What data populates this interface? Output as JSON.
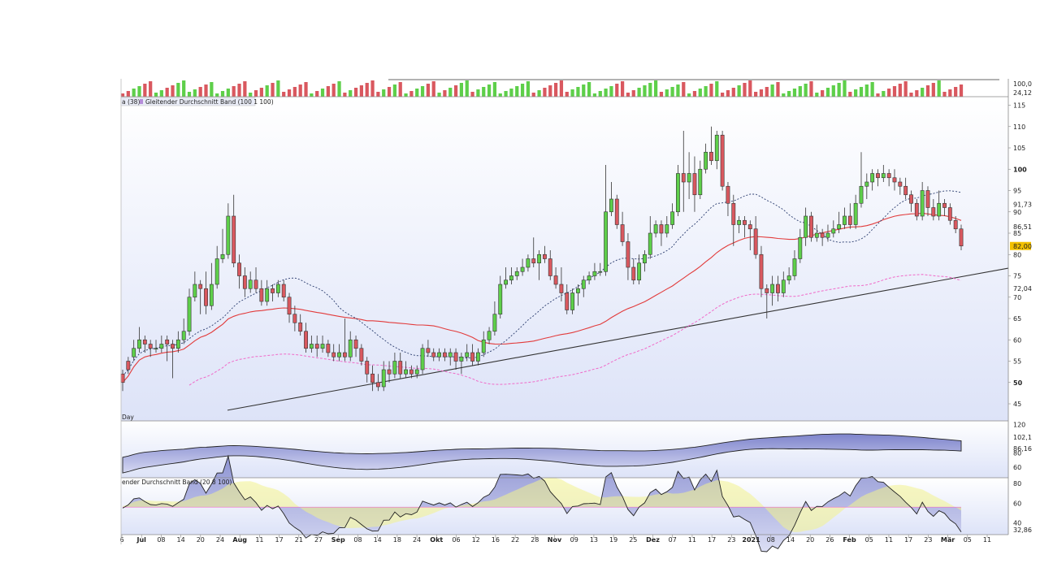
{
  "colors": {
    "up": "#5ecf4a",
    "down": "#d9585f",
    "panel_bg_top": "#ffffff",
    "panel_bg_bottom": "#dde3f8",
    "ma_red": "#e23b3b",
    "ma_dashed": "#2a3c6e",
    "band_pink": "#f06ac9",
    "band_fill": "#8f95d6",
    "yellow_band": "#f2f28c",
    "trendline": "#333333"
  },
  "chart_data": {
    "type": "candlestick",
    "legend": {
      "top_fragment": "a (38)",
      "top_indicator": "Gleitender Durchschnitt Band (100 1 100)",
      "bottom_indicator": "ender Durchschnitt Band (20 8 100)"
    },
    "timeframe_label": "Day",
    "volume_axis": {
      "labels": [
        "100,0",
        "24,12"
      ]
    },
    "price_axis": {
      "ticks": [
        45,
        50,
        55,
        60,
        65,
        70,
        75,
        80,
        85,
        90,
        95,
        100,
        105,
        110,
        115
      ],
      "ylim": [
        41,
        117
      ],
      "bold_ticks": [
        50,
        100
      ],
      "markers": [
        {
          "label": "91,73",
          "value": 91.73,
          "color": "#3b5fd9"
        },
        {
          "label": "86,51",
          "value": 86.51,
          "color": "#e23b3b"
        },
        {
          "label": "82,00",
          "value": 82.0,
          "color": "#f3c000"
        },
        {
          "label": "72,04",
          "value": 72.04,
          "color": "#f06ac9"
        }
      ]
    },
    "ind1_axis": {
      "ticks": [
        120,
        80,
        60
      ],
      "ylim": [
        45,
        125
      ],
      "markers": [
        {
          "label": "102,1",
          "value": 102.1
        },
        {
          "label": "86,16",
          "value": 86.16
        }
      ]
    },
    "ind2_axis": {
      "ticks": [
        80,
        60,
        40
      ],
      "ylim": [
        28,
        86
      ],
      "markers": [
        {
          "label": "32,86",
          "value": 32.86
        }
      ]
    },
    "x_ticks": [
      {
        "label": "6",
        "bold": false
      },
      {
        "label": "Jul",
        "bold": true
      },
      {
        "label": "08",
        "bold": false
      },
      {
        "label": "14",
        "bold": false
      },
      {
        "label": "20",
        "bold": false
      },
      {
        "label": "24",
        "bold": false
      },
      {
        "label": "Aug",
        "bold": true
      },
      {
        "label": "11",
        "bold": false
      },
      {
        "label": "17",
        "bold": false
      },
      {
        "label": "21",
        "bold": false
      },
      {
        "label": "27",
        "bold": false
      },
      {
        "label": "Sep",
        "bold": true
      },
      {
        "label": "08",
        "bold": false
      },
      {
        "label": "14",
        "bold": false
      },
      {
        "label": "18",
        "bold": false
      },
      {
        "label": "24",
        "bold": false
      },
      {
        "label": "Okt",
        "bold": true
      },
      {
        "label": "06",
        "bold": false
      },
      {
        "label": "12",
        "bold": false
      },
      {
        "label": "16",
        "bold": false
      },
      {
        "label": "22",
        "bold": false
      },
      {
        "label": "28",
        "bold": false
      },
      {
        "label": "Nov",
        "bold": true
      },
      {
        "label": "09",
        "bold": false
      },
      {
        "label": "13",
        "bold": false
      },
      {
        "label": "19",
        "bold": false
      },
      {
        "label": "25",
        "bold": false
      },
      {
        "label": "Dez",
        "bold": true
      },
      {
        "label": "07",
        "bold": false
      },
      {
        "label": "11",
        "bold": false
      },
      {
        "label": "17",
        "bold": false
      },
      {
        "label": "23",
        "bold": false
      },
      {
        "label": "2021",
        "bold": true
      },
      {
        "label": "08",
        "bold": false
      },
      {
        "label": "14",
        "bold": false
      },
      {
        "label": "20",
        "bold": false
      },
      {
        "label": "26",
        "bold": false
      },
      {
        "label": "Feb",
        "bold": true
      },
      {
        "label": "05",
        "bold": false
      },
      {
        "label": "11",
        "bold": false
      },
      {
        "label": "17",
        "bold": false
      },
      {
        "label": "23",
        "bold": false
      },
      {
        "label": "Mär",
        "bold": true
      },
      {
        "label": "05",
        "bold": false
      },
      {
        "label": "11",
        "bold": false
      }
    ],
    "trendline": {
      "from": 43.5,
      "to": 76.8
    },
    "candles": [
      [
        52,
        50,
        53,
        48
      ],
      [
        55,
        53,
        56,
        52
      ],
      [
        56,
        58,
        60,
        55
      ],
      [
        58,
        60,
        63,
        57
      ],
      [
        60,
        59,
        61,
        57
      ],
      [
        59,
        58,
        60,
        56
      ],
      [
        58,
        58,
        60,
        57
      ],
      [
        58,
        59,
        61,
        57
      ],
      [
        60,
        59,
        61,
        55
      ],
      [
        59,
        58,
        60,
        51
      ],
      [
        58,
        60,
        62,
        57
      ],
      [
        60,
        62,
        65,
        59
      ],
      [
        62,
        70,
        72,
        61
      ],
      [
        70,
        73,
        76,
        69
      ],
      [
        73,
        72,
        74,
        66
      ],
      [
        72,
        68,
        76,
        66
      ],
      [
        68,
        73,
        78,
        67
      ],
      [
        73,
        79,
        82,
        72
      ],
      [
        79,
        80,
        86,
        78
      ],
      [
        80,
        89,
        92,
        79
      ],
      [
        89,
        78,
        94,
        77
      ],
      [
        78,
        75,
        80,
        72
      ],
      [
        75,
        72,
        77,
        70
      ],
      [
        72,
        74,
        76,
        71
      ],
      [
        74,
        72,
        77,
        71
      ],
      [
        72,
        69,
        74,
        68
      ],
      [
        69,
        72,
        74,
        68
      ],
      [
        72,
        71,
        73,
        69
      ],
      [
        71,
        73,
        74,
        70
      ],
      [
        73,
        70,
        74,
        69
      ],
      [
        70,
        66,
        71,
        64
      ],
      [
        66,
        64,
        68,
        62
      ],
      [
        64,
        62,
        66,
        61
      ],
      [
        62,
        58,
        64,
        57
      ],
      [
        58,
        59,
        61,
        57
      ],
      [
        59,
        58,
        61,
        56
      ],
      [
        58,
        59,
        61,
        57
      ],
      [
        59,
        57,
        60,
        56
      ],
      [
        57,
        56,
        59,
        55
      ],
      [
        56,
        57,
        59,
        55
      ],
      [
        57,
        56,
        65,
        55
      ],
      [
        56,
        60,
        62,
        55
      ],
      [
        60,
        58,
        61,
        56
      ],
      [
        58,
        55,
        59,
        54
      ],
      [
        55,
        52,
        56,
        50
      ],
      [
        52,
        50,
        54,
        48
      ],
      [
        50,
        49,
        52,
        48
      ],
      [
        49,
        53,
        55,
        48
      ],
      [
        53,
        52,
        55,
        50
      ],
      [
        52,
        55,
        57,
        51
      ],
      [
        55,
        52,
        57,
        51
      ],
      [
        52,
        53,
        55,
        51
      ],
      [
        53,
        52,
        54,
        51
      ],
      [
        52,
        53,
        54,
        51
      ],
      [
        53,
        58,
        59,
        52
      ],
      [
        58,
        57,
        60,
        56
      ],
      [
        57,
        56,
        58,
        55
      ],
      [
        56,
        57,
        58,
        55
      ],
      [
        57,
        56,
        58,
        55
      ],
      [
        56,
        57,
        58,
        54
      ],
      [
        57,
        55,
        58,
        53
      ],
      [
        55,
        56,
        57,
        52
      ],
      [
        56,
        57,
        59,
        55
      ],
      [
        57,
        55,
        59,
        54
      ],
      [
        55,
        57,
        58,
        54
      ],
      [
        57,
        60,
        62,
        56
      ],
      [
        60,
        62,
        63,
        59
      ],
      [
        62,
        66,
        69,
        61
      ],
      [
        66,
        73,
        75,
        65
      ],
      [
        73,
        74,
        77,
        72
      ],
      [
        74,
        75,
        77,
        73
      ],
      [
        75,
        76,
        77,
        74
      ],
      [
        76,
        77,
        79,
        75
      ],
      [
        77,
        79,
        80,
        76
      ],
      [
        79,
        78,
        84,
        77
      ],
      [
        78,
        80,
        81,
        74
      ],
      [
        80,
        79,
        82,
        78
      ],
      [
        79,
        75,
        81,
        74
      ],
      [
        75,
        73,
        77,
        72
      ],
      [
        73,
        71,
        77,
        69
      ],
      [
        71,
        67,
        73,
        66
      ],
      [
        67,
        71,
        72,
        66
      ],
      [
        71,
        72,
        73,
        68
      ],
      [
        72,
        74,
        75,
        70
      ],
      [
        74,
        75,
        76,
        73
      ],
      [
        75,
        76,
        78,
        74
      ],
      [
        76,
        76,
        78,
        75
      ],
      [
        76,
        90,
        101,
        75
      ],
      [
        90,
        93,
        97,
        89
      ],
      [
        93,
        87,
        94,
        86
      ],
      [
        87,
        83,
        90,
        82
      ],
      [
        83,
        77,
        85,
        74
      ],
      [
        77,
        74,
        79,
        73
      ],
      [
        74,
        78,
        80,
        73
      ],
      [
        78,
        80,
        81,
        76
      ],
      [
        80,
        85,
        89,
        79
      ],
      [
        85,
        87,
        88,
        84
      ],
      [
        87,
        85,
        88,
        82
      ],
      [
        85,
        87,
        89,
        84
      ],
      [
        87,
        90,
        92,
        86
      ],
      [
        90,
        99,
        101,
        89
      ],
      [
        99,
        97,
        109,
        90
      ],
      [
        97,
        99,
        104,
        93
      ],
      [
        99,
        94,
        103,
        90
      ],
      [
        94,
        100,
        102,
        93
      ],
      [
        100,
        104,
        106,
        99
      ],
      [
        104,
        102,
        110,
        101
      ],
      [
        102,
        108,
        109,
        100
      ],
      [
        108,
        96,
        109,
        95
      ],
      [
        96,
        92,
        97,
        89
      ],
      [
        92,
        87,
        94,
        82
      ],
      [
        87,
        88,
        89,
        85
      ],
      [
        88,
        87,
        89,
        84
      ],
      [
        87,
        86,
        88,
        81
      ],
      [
        86,
        80,
        89,
        79
      ],
      [
        80,
        72,
        82,
        70
      ],
      [
        72,
        71,
        73,
        65
      ],
      [
        71,
        73,
        75,
        68
      ],
      [
        73,
        71,
        75,
        69
      ],
      [
        71,
        74,
        76,
        70
      ],
      [
        74,
        75,
        77,
        73
      ],
      [
        75,
        79,
        81,
        74
      ],
      [
        79,
        84,
        86,
        78
      ],
      [
        84,
        89,
        91,
        82
      ],
      [
        89,
        84,
        90,
        83
      ],
      [
        84,
        85,
        87,
        83
      ],
      [
        85,
        84,
        86,
        82
      ],
      [
        84,
        85,
        87,
        83
      ],
      [
        85,
        86,
        88,
        84
      ],
      [
        86,
        87,
        90,
        85
      ],
      [
        87,
        89,
        91,
        86
      ],
      [
        89,
        87,
        92,
        86
      ],
      [
        87,
        92,
        94,
        86
      ],
      [
        92,
        96,
        104,
        91
      ],
      [
        96,
        97,
        99,
        93
      ],
      [
        97,
        99,
        100,
        95
      ],
      [
        99,
        98,
        100,
        96
      ],
      [
        98,
        99,
        101,
        97
      ],
      [
        99,
        98,
        100,
        96
      ],
      [
        98,
        97,
        100,
        95
      ],
      [
        97,
        96,
        98,
        94
      ],
      [
        96,
        94,
        98,
        93
      ],
      [
        94,
        92,
        95,
        90
      ],
      [
        92,
        89,
        93,
        88
      ],
      [
        89,
        95,
        97,
        88
      ],
      [
        95,
        91,
        96,
        89
      ],
      [
        91,
        89,
        93,
        88
      ],
      [
        89,
        92,
        95,
        88
      ],
      [
        92,
        91,
        93,
        89
      ],
      [
        91,
        88,
        92,
        87
      ],
      [
        88,
        86,
        89,
        85
      ],
      [
        86,
        82,
        87,
        81
      ]
    ]
  }
}
